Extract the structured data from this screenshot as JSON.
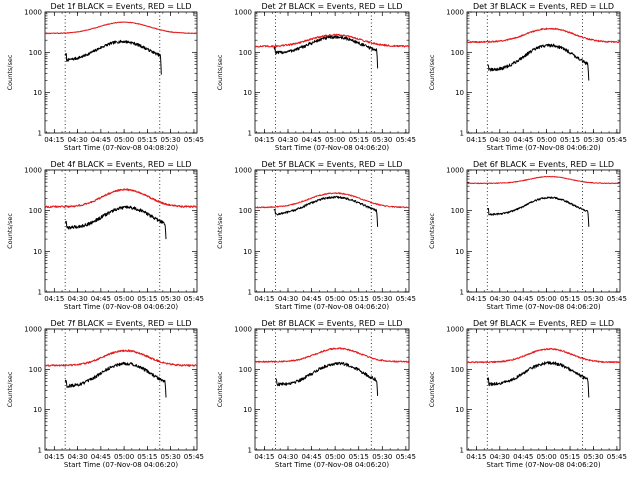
{
  "chart_data": [
    {
      "type": "line",
      "title": "Det 1f BLACK = Events, RED = LLD",
      "xlabel": "Start Time (07-Nov-08 04:08:20)",
      "ylabel": "Counts/sec",
      "yscale": "log",
      "ylim": [
        1,
        1000
      ],
      "xlim": [
        "04:09",
        "03:47"
      ],
      "x_tick_labels": [
        "04:15",
        "04:30",
        "04:45",
        "05:00",
        "05:15",
        "05:30",
        "05:45"
      ],
      "y_tick_labels": [
        "1",
        "10",
        "100",
        "1000"
      ],
      "dotted_lines_x": [
        "04:22",
        "05:23"
      ],
      "series": [
        {
          "color": "#000000",
          "start": "04:22",
          "end": "05:24",
          "profile": {
            "base": 62,
            "peak": 185,
            "peak_time": "04:59",
            "width": 13,
            "drop": 28
          },
          "noise": 0.08
        },
        {
          "color": "#e41a1c",
          "start": "04:09",
          "end": "05:47",
          "profile": {
            "base": 295,
            "peak": 560,
            "peak_time": "05:00",
            "width": 14,
            "drop": 0
          },
          "noise": 0.02
        }
      ]
    },
    {
      "type": "line",
      "title": "Det 2f BLACK = Events, RED = LLD",
      "xlabel": "Start Time (07-Nov-08 04:06:20)",
      "ylabel": "Counts/sec",
      "yscale": "log",
      "ylim": [
        1,
        1000
      ],
      "xlim": [
        "04:09",
        "03:47"
      ],
      "x_tick_labels": [
        "04:15",
        "04:30",
        "04:45",
        "05:00",
        "05:15",
        "05:30",
        "05:45"
      ],
      "y_tick_labels": [
        "1",
        "10",
        "100",
        "1000"
      ],
      "dotted_lines_x": [
        "04:22",
        "05:23"
      ],
      "series": [
        {
          "color": "#000000",
          "start": "04:21",
          "end": "05:27",
          "profile": {
            "base": 95,
            "peak": 240,
            "peak_time": "05:00",
            "width": 13,
            "drop": 40
          },
          "noise": 0.09
        },
        {
          "color": "#e41a1c",
          "start": "04:09",
          "end": "05:47",
          "profile": {
            "base": 140,
            "peak": 270,
            "peak_time": "05:00",
            "width": 14,
            "drop": 0
          },
          "noise": 0.05
        }
      ]
    },
    {
      "type": "line",
      "title": "Det 3f BLACK = Events, RED = LLD",
      "xlabel": "Start Time (07-Nov-08 04:06:20)",
      "ylabel": "Counts/sec",
      "yscale": "log",
      "ylim": [
        1,
        1000
      ],
      "xlim": [
        "04:09",
        "03:47"
      ],
      "x_tick_labels": [
        "04:15",
        "04:30",
        "04:45",
        "05:00",
        "05:15",
        "05:30",
        "05:45"
      ],
      "y_tick_labels": [
        "1",
        "10",
        "100",
        "1000"
      ],
      "dotted_lines_x": [
        "04:22",
        "05:23"
      ],
      "series": [
        {
          "color": "#000000",
          "start": "04:22",
          "end": "05:27",
          "profile": {
            "base": 36,
            "peak": 150,
            "peak_time": "05:02",
            "width": 12,
            "drop": 20
          },
          "noise": 0.09
        },
        {
          "color": "#e41a1c",
          "start": "04:09",
          "end": "05:47",
          "profile": {
            "base": 180,
            "peak": 390,
            "peak_time": "05:02",
            "width": 13,
            "drop": 0
          },
          "noise": 0.04
        }
      ]
    },
    {
      "type": "line",
      "title": "Det 4f BLACK = Events, RED = LLD",
      "xlabel": "Start Time (07-Nov-08 04:06:20)",
      "ylabel": "Counts/sec",
      "yscale": "log",
      "ylim": [
        1,
        1000
      ],
      "xlim": [
        "04:09",
        "03:47"
      ],
      "x_tick_labels": [
        "04:15",
        "04:30",
        "04:45",
        "05:00",
        "05:15",
        "05:30",
        "05:45"
      ],
      "y_tick_labels": [
        "1",
        "10",
        "100",
        "1000"
      ],
      "dotted_lines_x": [
        "04:22",
        "05:23"
      ],
      "series": [
        {
          "color": "#000000",
          "start": "04:22",
          "end": "05:27",
          "profile": {
            "base": 38,
            "peak": 120,
            "peak_time": "05:02",
            "width": 12,
            "drop": 20
          },
          "noise": 0.09
        },
        {
          "color": "#e41a1c",
          "start": "04:09",
          "end": "05:47",
          "profile": {
            "base": 125,
            "peak": 330,
            "peak_time": "05:01",
            "width": 12,
            "drop": 0
          },
          "noise": 0.05
        }
      ]
    },
    {
      "type": "line",
      "title": "Det 5f BLACK = Events, RED = LLD",
      "xlabel": "Start Time (07-Nov-08 04:06:20)",
      "ylabel": "Counts/sec",
      "yscale": "log",
      "ylim": [
        1,
        1000
      ],
      "xlim": [
        "04:09",
        "03:47"
      ],
      "x_tick_labels": [
        "04:15",
        "04:30",
        "04:45",
        "05:00",
        "05:15",
        "05:30",
        "05:45"
      ],
      "y_tick_labels": [
        "1",
        "10",
        "100",
        "1000"
      ],
      "dotted_lines_x": [
        "04:22",
        "05:23"
      ],
      "series": [
        {
          "color": "#000000",
          "start": "04:21",
          "end": "05:27",
          "profile": {
            "base": 78,
            "peak": 215,
            "peak_time": "05:00",
            "width": 14,
            "drop": 40
          },
          "noise": 0.06
        },
        {
          "color": "#e41a1c",
          "start": "04:09",
          "end": "05:47",
          "profile": {
            "base": 120,
            "peak": 270,
            "peak_time": "05:00",
            "width": 14,
            "drop": 0
          },
          "noise": 0.03
        }
      ]
    },
    {
      "type": "line",
      "title": "Det 6f BLACK = Events, RED = LLD",
      "xlabel": "Start Time (07-Nov-08 04:06:20)",
      "ylabel": "Counts/sec",
      "yscale": "log",
      "ylim": [
        1,
        1000
      ],
      "xlim": [
        "04:09",
        "03:47"
      ],
      "x_tick_labels": [
        "04:15",
        "04:30",
        "04:45",
        "05:00",
        "05:15",
        "05:30",
        "05:45"
      ],
      "y_tick_labels": [
        "1",
        "10",
        "100",
        "1000"
      ],
      "dotted_lines_x": [
        "04:22",
        "05:23"
      ],
      "series": [
        {
          "color": "#000000",
          "start": "04:22",
          "end": "05:27",
          "profile": {
            "base": 80,
            "peak": 210,
            "peak_time": "05:02",
            "width": 12,
            "drop": 40
          },
          "noise": 0.05
        },
        {
          "color": "#e41a1c",
          "start": "04:09",
          "end": "05:47",
          "profile": {
            "base": 470,
            "peak": 690,
            "peak_time": "05:02",
            "width": 12,
            "drop": 0
          },
          "noise": 0.02
        }
      ]
    },
    {
      "type": "line",
      "title": "Det 7f BLACK = Events, RED = LLD",
      "xlabel": "Start Time (07-Nov-08 04:06:20)",
      "ylabel": "Counts/sec",
      "yscale": "log",
      "ylim": [
        1,
        1000
      ],
      "xlim": [
        "04:09",
        "03:47"
      ],
      "x_tick_labels": [
        "04:15",
        "04:30",
        "04:45",
        "05:00",
        "05:15",
        "05:30",
        "05:45"
      ],
      "y_tick_labels": [
        "1",
        "10",
        "100",
        "1000"
      ],
      "dotted_lines_x": [
        "04:22",
        "05:23"
      ],
      "series": [
        {
          "color": "#000000",
          "start": "04:22",
          "end": "05:27",
          "profile": {
            "base": 38,
            "peak": 140,
            "peak_time": "05:01",
            "width": 12,
            "drop": 20
          },
          "noise": 0.09
        },
        {
          "color": "#e41a1c",
          "start": "04:09",
          "end": "05:47",
          "profile": {
            "base": 125,
            "peak": 290,
            "peak_time": "05:01",
            "width": 12,
            "drop": 0
          },
          "noise": 0.05
        }
      ]
    },
    {
      "type": "line",
      "title": "Det 8f BLACK = Events, RED = LLD",
      "xlabel": "Start Time (07-Nov-08 04:06:20)",
      "ylabel": "Counts/sec",
      "yscale": "log",
      "ylim": [
        1,
        1000
      ],
      "xlim": [
        "04:09",
        "03:47"
      ],
      "x_tick_labels": [
        "04:15",
        "04:30",
        "04:45",
        "05:00",
        "05:15",
        "05:30",
        "05:45"
      ],
      "y_tick_labels": [
        "1",
        "10",
        "100",
        "1000"
      ],
      "dotted_lines_x": [
        "04:22",
        "05:23"
      ],
      "series": [
        {
          "color": "#000000",
          "start": "04:22",
          "end": "05:27",
          "profile": {
            "base": 42,
            "peak": 140,
            "peak_time": "05:02",
            "width": 12,
            "drop": 22
          },
          "noise": 0.09
        },
        {
          "color": "#e41a1c",
          "start": "04:09",
          "end": "05:47",
          "profile": {
            "base": 155,
            "peak": 330,
            "peak_time": "05:02",
            "width": 12,
            "drop": 0
          },
          "noise": 0.04
        }
      ]
    },
    {
      "type": "line",
      "title": "Det 9f BLACK = Events, RED = LLD",
      "xlabel": "Start Time (07-Nov-08 04:06:20)",
      "ylabel": "Counts/sec",
      "yscale": "log",
      "ylim": [
        1,
        1000
      ],
      "xlim": [
        "04:09",
        "03:47"
      ],
      "x_tick_labels": [
        "04:15",
        "04:30",
        "04:45",
        "05:00",
        "05:15",
        "05:30",
        "05:45"
      ],
      "y_tick_labels": [
        "1",
        "10",
        "100",
        "1000"
      ],
      "dotted_lines_x": [
        "04:22",
        "05:23"
      ],
      "series": [
        {
          "color": "#000000",
          "start": "04:22",
          "end": "05:27",
          "profile": {
            "base": 42,
            "peak": 145,
            "peak_time": "05:02",
            "width": 12,
            "drop": 20
          },
          "noise": 0.09
        },
        {
          "color": "#e41a1c",
          "start": "04:09",
          "end": "05:47",
          "profile": {
            "base": 150,
            "peak": 320,
            "peak_time": "05:02",
            "width": 12,
            "drop": 0
          },
          "noise": 0.04
        }
      ]
    }
  ]
}
